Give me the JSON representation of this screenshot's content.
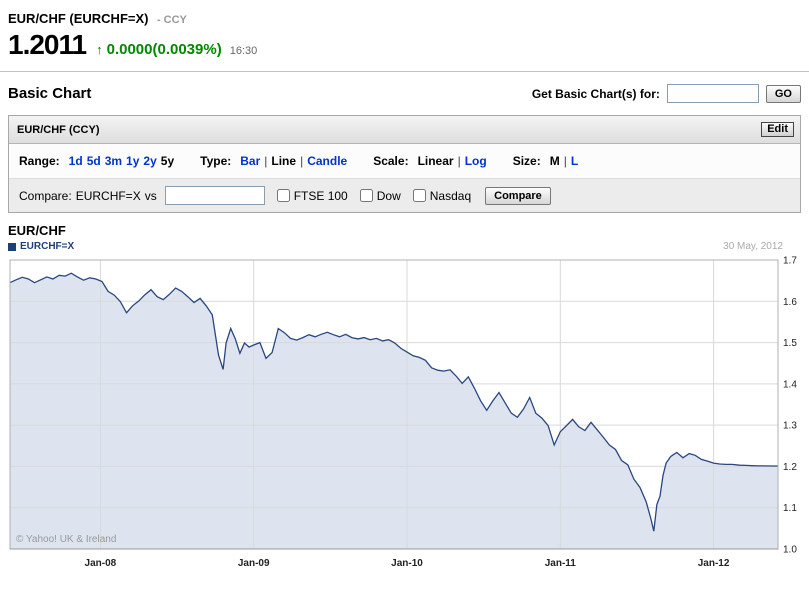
{
  "quote": {
    "title": "EUR/CHF (EURCHF=X)",
    "suffix": "- CCY",
    "price": "1.2011",
    "arrow": "↑",
    "change": "0.0000(0.0039%)",
    "time": "16:30"
  },
  "basic_chart": {
    "heading": "Basic Chart",
    "get_label": "Get Basic Chart(s) for:",
    "symbol_input_value": "",
    "go_button": "GO"
  },
  "module": {
    "title": "EUR/CHF (CCY)",
    "edit_button": "Edit"
  },
  "toolbar": {
    "groups": [
      {
        "name": "range",
        "label": "Range:",
        "separator": " ",
        "options": [
          {
            "label": "1d",
            "selected": false
          },
          {
            "label": "5d",
            "selected": false
          },
          {
            "label": "3m",
            "selected": false
          },
          {
            "label": "1y",
            "selected": false
          },
          {
            "label": "2y",
            "selected": false
          },
          {
            "label": "5y",
            "selected": true
          }
        ]
      },
      {
        "name": "type",
        "label": "Type:",
        "separator": "|",
        "options": [
          {
            "label": "Bar",
            "selected": false
          },
          {
            "label": "Line",
            "selected": true
          },
          {
            "label": "Candle",
            "selected": false
          }
        ]
      },
      {
        "name": "scale",
        "label": "Scale:",
        "separator": "|",
        "options": [
          {
            "label": "Linear",
            "selected": true
          },
          {
            "label": "Log",
            "selected": false
          }
        ]
      },
      {
        "name": "size",
        "label": "Size:",
        "separator": "|",
        "options": [
          {
            "label": "M",
            "selected": true
          },
          {
            "label": "L",
            "selected": false
          }
        ]
      }
    ]
  },
  "compare": {
    "label": "Compare:",
    "symbol": "EURCHF=X",
    "vs": "vs",
    "input_value": "",
    "checkboxes": [
      "FTSE 100",
      "Dow",
      "Nasdaq"
    ],
    "button": "Compare"
  },
  "chart": {
    "title": "EUR/CHF",
    "legend": "EURCHF=X",
    "date": "30 May, 2012",
    "copyright": "© Yahoo! UK & Ireland"
  },
  "colors": {
    "up_green": "#008800",
    "link_blue": "#0033cc",
    "line": "#29477e",
    "fill": "#dde4f0",
    "grid": "#d9d9d9",
    "plot_border": "#b0b0b0"
  },
  "chart_data": {
    "type": "area",
    "title": "EUR/CHF",
    "series_name": "EURCHF=X",
    "x_unit": "decimal year",
    "x_range": [
      2007.41,
      2012.42
    ],
    "y_range": [
      1.0,
      1.7
    ],
    "y_ticks": [
      1.0,
      1.1,
      1.2,
      1.3,
      1.4,
      1.5,
      1.6,
      1.7
    ],
    "x_tick_values": [
      2008,
      2009,
      2010,
      2011,
      2012
    ],
    "x_tick_labels": [
      "Jan-08",
      "Jan-09",
      "Jan-10",
      "Jan-11",
      "Jan-12"
    ],
    "grid": true,
    "legend_position": "top-left",
    "points": [
      [
        2007.41,
        1.645
      ],
      [
        2007.45,
        1.652
      ],
      [
        2007.49,
        1.658
      ],
      [
        2007.53,
        1.654
      ],
      [
        2007.57,
        1.645
      ],
      [
        2007.61,
        1.652
      ],
      [
        2007.65,
        1.659
      ],
      [
        2007.69,
        1.654
      ],
      [
        2007.73,
        1.663
      ],
      [
        2007.77,
        1.661
      ],
      [
        2007.81,
        1.668
      ],
      [
        2007.85,
        1.659
      ],
      [
        2007.89,
        1.651
      ],
      [
        2007.93,
        1.657
      ],
      [
        2007.97,
        1.654
      ],
      [
        2008.01,
        1.648
      ],
      [
        2008.05,
        1.624
      ],
      [
        2008.09,
        1.615
      ],
      [
        2008.13,
        1.599
      ],
      [
        2008.17,
        1.572
      ],
      [
        2008.21,
        1.589
      ],
      [
        2008.25,
        1.601
      ],
      [
        2008.29,
        1.616
      ],
      [
        2008.33,
        1.628
      ],
      [
        2008.37,
        1.611
      ],
      [
        2008.41,
        1.604
      ],
      [
        2008.45,
        1.617
      ],
      [
        2008.49,
        1.632
      ],
      [
        2008.53,
        1.624
      ],
      [
        2008.57,
        1.611
      ],
      [
        2008.61,
        1.597
      ],
      [
        2008.65,
        1.607
      ],
      [
        2008.69,
        1.589
      ],
      [
        2008.73,
        1.567
      ],
      [
        2008.77,
        1.47
      ],
      [
        2008.8,
        1.435
      ],
      [
        2008.82,
        1.499
      ],
      [
        2008.85,
        1.534
      ],
      [
        2008.88,
        1.509
      ],
      [
        2008.91,
        1.474
      ],
      [
        2008.94,
        1.499
      ],
      [
        2008.97,
        1.489
      ],
      [
        2009.0,
        1.494
      ],
      [
        2009.04,
        1.5
      ],
      [
        2009.08,
        1.462
      ],
      [
        2009.12,
        1.476
      ],
      [
        2009.16,
        1.534
      ],
      [
        2009.2,
        1.524
      ],
      [
        2009.24,
        1.51
      ],
      [
        2009.28,
        1.506
      ],
      [
        2009.32,
        1.512
      ],
      [
        2009.36,
        1.519
      ],
      [
        2009.4,
        1.514
      ],
      [
        2009.44,
        1.52
      ],
      [
        2009.48,
        1.525
      ],
      [
        2009.52,
        1.519
      ],
      [
        2009.56,
        1.514
      ],
      [
        2009.6,
        1.52
      ],
      [
        2009.64,
        1.512
      ],
      [
        2009.68,
        1.509
      ],
      [
        2009.72,
        1.512
      ],
      [
        2009.76,
        1.507
      ],
      [
        2009.8,
        1.51
      ],
      [
        2009.84,
        1.504
      ],
      [
        2009.88,
        1.507
      ],
      [
        2009.92,
        1.499
      ],
      [
        2009.96,
        1.486
      ],
      [
        2010.0,
        1.477
      ],
      [
        2010.04,
        1.468
      ],
      [
        2010.08,
        1.464
      ],
      [
        2010.12,
        1.457
      ],
      [
        2010.16,
        1.439
      ],
      [
        2010.2,
        1.433
      ],
      [
        2010.24,
        1.431
      ],
      [
        2010.28,
        1.434
      ],
      [
        2010.32,
        1.419
      ],
      [
        2010.36,
        1.401
      ],
      [
        2010.4,
        1.417
      ],
      [
        2010.44,
        1.389
      ],
      [
        2010.48,
        1.359
      ],
      [
        2010.52,
        1.336
      ],
      [
        2010.56,
        1.359
      ],
      [
        2010.6,
        1.379
      ],
      [
        2010.64,
        1.354
      ],
      [
        2010.68,
        1.329
      ],
      [
        2010.72,
        1.319
      ],
      [
        2010.76,
        1.339
      ],
      [
        2010.8,
        1.367
      ],
      [
        2010.84,
        1.329
      ],
      [
        2010.88,
        1.317
      ],
      [
        2010.92,
        1.299
      ],
      [
        2010.96,
        1.252
      ],
      [
        2011.0,
        1.284
      ],
      [
        2011.04,
        1.299
      ],
      [
        2011.08,
        1.314
      ],
      [
        2011.12,
        1.296
      ],
      [
        2011.16,
        1.287
      ],
      [
        2011.2,
        1.307
      ],
      [
        2011.24,
        1.289
      ],
      [
        2011.28,
        1.271
      ],
      [
        2011.32,
        1.252
      ],
      [
        2011.36,
        1.241
      ],
      [
        2011.4,
        1.214
      ],
      [
        2011.44,
        1.204
      ],
      [
        2011.48,
        1.169
      ],
      [
        2011.52,
        1.149
      ],
      [
        2011.56,
        1.114
      ],
      [
        2011.59,
        1.074
      ],
      [
        2011.61,
        1.043
      ],
      [
        2011.63,
        1.108
      ],
      [
        2011.65,
        1.128
      ],
      [
        2011.67,
        1.178
      ],
      [
        2011.69,
        1.208
      ],
      [
        2011.72,
        1.224
      ],
      [
        2011.76,
        1.234
      ],
      [
        2011.8,
        1.221
      ],
      [
        2011.84,
        1.231
      ],
      [
        2011.88,
        1.227
      ],
      [
        2011.92,
        1.217
      ],
      [
        2011.96,
        1.213
      ],
      [
        2012.0,
        1.208
      ],
      [
        2012.04,
        1.206
      ],
      [
        2012.08,
        1.205
      ],
      [
        2012.12,
        1.205
      ],
      [
        2012.17,
        1.203
      ],
      [
        2012.21,
        1.2025
      ],
      [
        2012.25,
        1.2018
      ],
      [
        2012.29,
        1.2014
      ],
      [
        2012.33,
        1.2012
      ],
      [
        2012.38,
        1.2011
      ],
      [
        2012.42,
        1.2011
      ]
    ]
  }
}
